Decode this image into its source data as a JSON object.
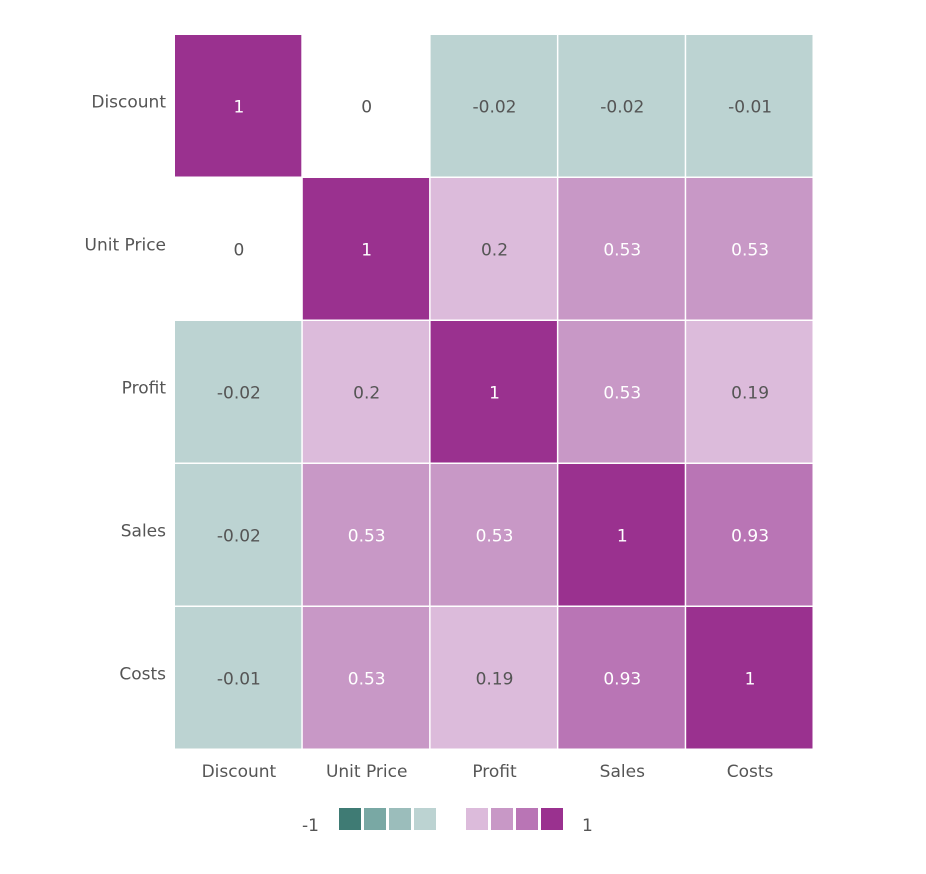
{
  "chart_data": {
    "type": "heatmap",
    "title": "",
    "x_categories": [
      "Discount",
      "Unit Price",
      "Profit",
      "Sales",
      "Costs"
    ],
    "y_categories": [
      "Discount",
      "Unit Price",
      "Profit",
      "Sales",
      "Costs"
    ],
    "values": [
      [
        1,
        0,
        -0.02,
        -0.02,
        -0.01
      ],
      [
        0,
        1,
        0.2,
        0.53,
        0.53
      ],
      [
        -0.02,
        0.2,
        1,
        0.53,
        0.19
      ],
      [
        -0.02,
        0.53,
        0.53,
        1,
        0.93
      ],
      [
        -0.01,
        0.53,
        0.19,
        0.93,
        1
      ]
    ],
    "range": [
      -1,
      1
    ],
    "legend": {
      "min_label": "-1",
      "max_label": "1",
      "placement": "bottom",
      "negative_colors": [
        "#3f7b74",
        "#79a8a4",
        "#9bbdbb",
        "#bcd3d2"
      ],
      "positive_colors": [
        "#dcbbdb",
        "#c898c6",
        "#b975b5",
        "#9a318f"
      ]
    },
    "zero_color": "#ffffff"
  }
}
